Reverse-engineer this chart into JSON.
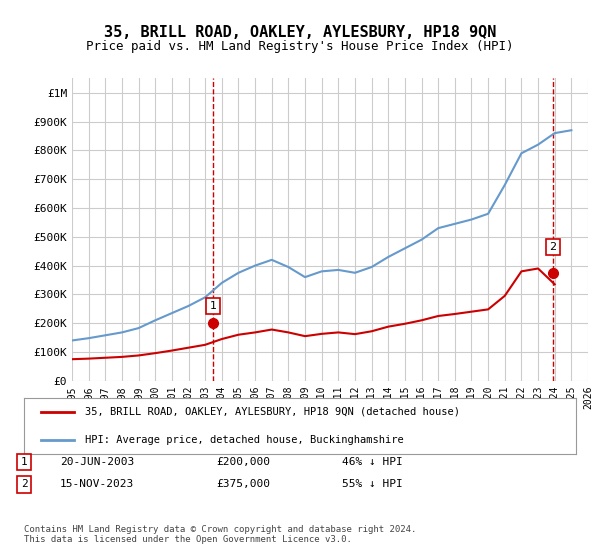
{
  "title": "35, BRILL ROAD, OAKLEY, AYLESBURY, HP18 9QN",
  "subtitle": "Price paid vs. HM Land Registry's House Price Index (HPI)",
  "title_fontsize": 11,
  "subtitle_fontsize": 9,
  "background_color": "#ffffff",
  "plot_bg_color": "#ffffff",
  "grid_color": "#cccccc",
  "hpi_color": "#6699cc",
  "price_color": "#cc0000",
  "ylim": [
    0,
    1050000
  ],
  "yticks": [
    0,
    100000,
    200000,
    300000,
    400000,
    500000,
    600000,
    700000,
    800000,
    900000,
    1000000
  ],
  "ytick_labels": [
    "£0",
    "£100K",
    "£200K",
    "£300K",
    "£400K",
    "£500K",
    "£600K",
    "£700K",
    "£800K",
    "£900K",
    "£1M"
  ],
  "legend_label_price": "35, BRILL ROAD, OAKLEY, AYLESBURY, HP18 9QN (detached house)",
  "legend_label_hpi": "HPI: Average price, detached house, Buckinghamshire",
  "sale1_date": "20-JUN-2003",
  "sale1_price": "£200,000",
  "sale1_pct": "46% ↓ HPI",
  "sale2_date": "15-NOV-2023",
  "sale2_price": "£375,000",
  "sale2_pct": "55% ↓ HPI",
  "footer": "Contains HM Land Registry data © Crown copyright and database right 2024.\nThis data is licensed under the Open Government Licence v3.0.",
  "hpi_years": [
    1995,
    1996,
    1997,
    1998,
    1999,
    2000,
    2001,
    2002,
    2003,
    2004,
    2005,
    2006,
    2007,
    2008,
    2009,
    2010,
    2011,
    2012,
    2013,
    2014,
    2015,
    2016,
    2017,
    2018,
    2019,
    2020,
    2021,
    2022,
    2023,
    2024,
    2025
  ],
  "hpi_values": [
    140000,
    148000,
    158000,
    168000,
    183000,
    210000,
    235000,
    260000,
    290000,
    340000,
    375000,
    400000,
    420000,
    395000,
    360000,
    380000,
    385000,
    375000,
    395000,
    430000,
    460000,
    490000,
    530000,
    545000,
    560000,
    580000,
    680000,
    790000,
    820000,
    860000,
    870000
  ],
  "price_years": [
    1995,
    1996,
    1997,
    1998,
    1999,
    2000,
    2001,
    2002,
    2003,
    2004,
    2005,
    2006,
    2007,
    2008,
    2009,
    2010,
    2011,
    2012,
    2013,
    2014,
    2015,
    2016,
    2017,
    2018,
    2019,
    2020,
    2021,
    2022,
    2023,
    2024
  ],
  "price_values": [
    75000,
    77000,
    80000,
    83000,
    88000,
    96000,
    105000,
    115000,
    125000,
    145000,
    160000,
    168000,
    178000,
    168000,
    155000,
    163000,
    168000,
    162000,
    172000,
    188000,
    198000,
    210000,
    225000,
    232000,
    240000,
    248000,
    295000,
    380000,
    390000,
    335000
  ],
  "sale1_x": 2003.47,
  "sale1_y": 200000,
  "sale2_x": 2023.88,
  "sale2_y": 375000,
  "vline1_x": 2003.47,
  "vline2_x": 2023.88,
  "xmin": 1995,
  "xmax": 2026
}
